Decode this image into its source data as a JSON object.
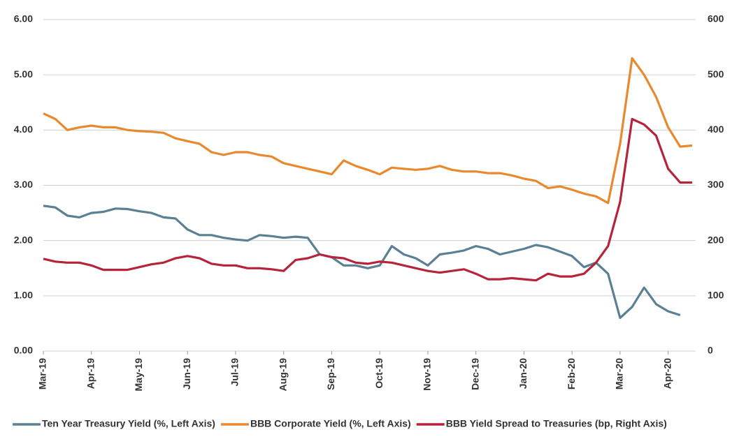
{
  "chart_data": {
    "type": "line",
    "x": [
      0,
      0.25,
      0.5,
      0.75,
      1,
      1.25,
      1.5,
      1.75,
      2,
      2.25,
      2.5,
      2.75,
      3,
      3.25,
      3.5,
      3.75,
      4,
      4.25,
      4.5,
      4.75,
      5,
      5.25,
      5.5,
      5.75,
      6,
      6.25,
      6.5,
      6.75,
      7,
      7.25,
      7.5,
      7.75,
      8,
      8.25,
      8.5,
      8.75,
      9,
      9.25,
      9.5,
      9.75,
      10,
      10.25,
      10.5,
      10.75,
      11,
      11.25,
      11.5,
      11.75,
      12,
      12.25,
      12.5,
      12.75,
      13,
      13.25,
      13.5
    ],
    "series": [
      {
        "name": "Ten Year Treasury Yield (%, Left Axis)",
        "color": "#5b8094",
        "axis": "y",
        "values": [
          2.63,
          2.6,
          2.45,
          2.42,
          2.5,
          2.52,
          2.58,
          2.57,
          2.53,
          2.5,
          2.42,
          2.4,
          2.2,
          2.1,
          2.1,
          2.05,
          2.02,
          2.0,
          2.1,
          2.08,
          2.05,
          2.07,
          2.05,
          1.75,
          1.7,
          1.55,
          1.55,
          1.5,
          1.55,
          1.9,
          1.75,
          1.68,
          1.55,
          1.75,
          1.78,
          1.82,
          1.9,
          1.85,
          1.75,
          1.8,
          1.85,
          1.92,
          1.88,
          1.8,
          1.72,
          1.52,
          1.6,
          1.4,
          0.6,
          0.8,
          1.15,
          0.85,
          0.72,
          0.65,
          null
        ]
      },
      {
        "name": "BBB Corporate Yield (%, Left Axis)",
        "color": "#e8892e",
        "axis": "y",
        "values": [
          4.3,
          4.2,
          4.0,
          4.05,
          4.08,
          4.05,
          4.05,
          4.0,
          3.98,
          3.97,
          3.95,
          3.85,
          3.8,
          3.75,
          3.6,
          3.55,
          3.6,
          3.6,
          3.55,
          3.52,
          3.4,
          3.35,
          3.3,
          3.25,
          3.2,
          3.45,
          3.35,
          3.28,
          3.2,
          3.32,
          3.3,
          3.28,
          3.3,
          3.35,
          3.28,
          3.25,
          3.25,
          3.22,
          3.22,
          3.18,
          3.12,
          3.08,
          2.95,
          2.98,
          2.92,
          2.85,
          2.8,
          2.68,
          3.75,
          5.3,
          5.0,
          4.6,
          4.05,
          3.7,
          3.72
        ]
      },
      {
        "name": "BBB Yield Spread to Treasuries (bp, Right Axis)",
        "color": "#b5243a",
        "axis": "y2",
        "values": [
          167,
          162,
          160,
          160,
          155,
          147,
          147,
          147,
          152,
          157,
          160,
          168,
          172,
          168,
          158,
          155,
          155,
          150,
          150,
          148,
          145,
          165,
          168,
          175,
          170,
          168,
          160,
          158,
          162,
          160,
          155,
          150,
          145,
          142,
          145,
          148,
          140,
          130,
          130,
          132,
          130,
          128,
          140,
          135,
          135,
          140,
          160,
          190,
          270,
          420,
          410,
          390,
          330,
          305,
          305
        ]
      }
    ],
    "xlim": [
      0,
      13.5
    ],
    "xticks": [
      {
        "value": 0,
        "label": "Mar-19"
      },
      {
        "value": 1,
        "label": "Apr-19"
      },
      {
        "value": 2,
        "label": "May-19"
      },
      {
        "value": 3,
        "label": "Jun-19"
      },
      {
        "value": 4,
        "label": "Jul-19"
      },
      {
        "value": 5,
        "label": "Aug-19"
      },
      {
        "value": 6,
        "label": "Sep-19"
      },
      {
        "value": 7,
        "label": "Oct-19"
      },
      {
        "value": 8,
        "label": "Nov-19"
      },
      {
        "value": 9,
        "label": "Dec-19"
      },
      {
        "value": 10,
        "label": "Jan-20"
      },
      {
        "value": 11,
        "label": "Feb-20"
      },
      {
        "value": 12,
        "label": "Mar-20"
      },
      {
        "value": 13,
        "label": "Apr-20"
      }
    ],
    "ylim": [
      0,
      6
    ],
    "yticks": [
      {
        "value": 0,
        "label": "0.00"
      },
      {
        "value": 1,
        "label": "1.00"
      },
      {
        "value": 2,
        "label": "2.00"
      },
      {
        "value": 3,
        "label": "3.00"
      },
      {
        "value": 4,
        "label": "4.00"
      },
      {
        "value": 5,
        "label": "5.00"
      },
      {
        "value": 6,
        "label": "6.00"
      }
    ],
    "y2lim": [
      0,
      600
    ],
    "y2ticks": [
      0,
      100,
      200,
      300,
      400,
      500,
      600
    ],
    "grid": true,
    "legend": "bottom"
  }
}
